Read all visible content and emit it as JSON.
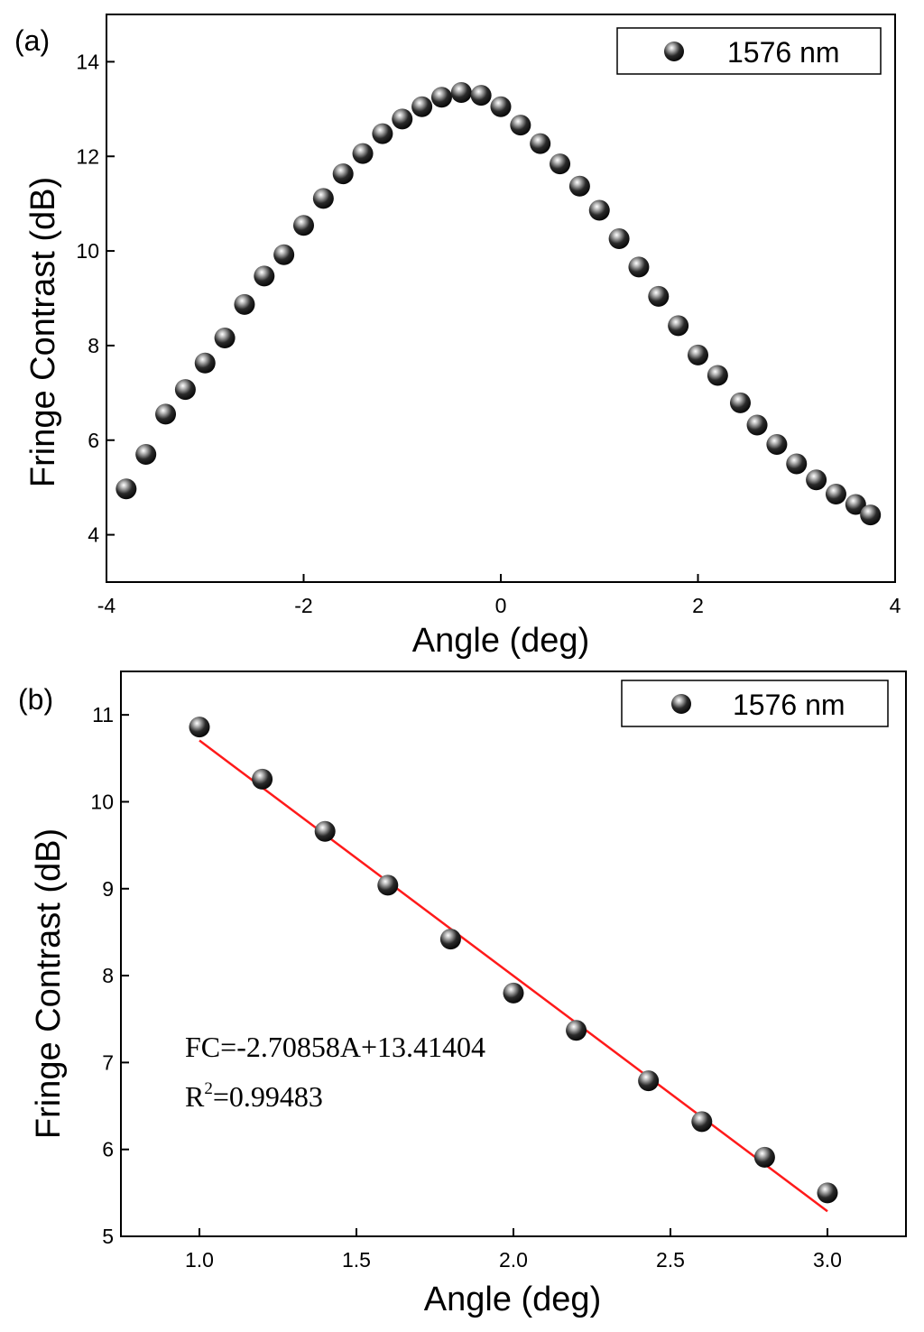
{
  "chart_data": [
    {
      "type": "scatter",
      "panel_label": "(a)",
      "xlabel": "Angle (deg)",
      "ylabel": "Fringe Contrast (dB)",
      "xlim": [
        -4,
        4
      ],
      "ylim": [
        3.0,
        15.0
      ],
      "xticks": [
        -4,
        -2,
        0,
        2,
        4
      ],
      "xtick_labels": [
        "-4",
        "-2",
        "0",
        "2",
        "4"
      ],
      "yticks": [
        4,
        6,
        8,
        10,
        12,
        14
      ],
      "ytick_labels": [
        "4",
        "6",
        "8",
        "10",
        "12",
        "14"
      ],
      "grid": false,
      "legend_position": "top-right",
      "series": [
        {
          "name": "1576 nm",
          "marker_color": "#000000",
          "x": [
            -3.8,
            -3.6,
            -3.4,
            -3.2,
            -3.0,
            -2.8,
            -2.6,
            -2.4,
            -2.2,
            -2.0,
            -1.8,
            -1.6,
            -1.4,
            -1.2,
            -1.0,
            -0.8,
            -0.6,
            -0.4,
            -0.2,
            0.0,
            0.2,
            0.4,
            0.6,
            0.8,
            1.0,
            1.2,
            1.4,
            1.6,
            1.8,
            2.0,
            2.2,
            2.43,
            2.6,
            2.8,
            3.0,
            3.2,
            3.4,
            3.6,
            3.75
          ],
          "y": [
            4.97,
            5.7,
            6.55,
            7.07,
            7.63,
            8.16,
            8.87,
            9.47,
            9.92,
            10.54,
            11.11,
            11.63,
            12.06,
            12.48,
            12.79,
            13.05,
            13.25,
            13.35,
            13.29,
            13.05,
            12.66,
            12.27,
            11.84,
            11.37,
            10.86,
            10.26,
            9.66,
            9.04,
            8.42,
            7.8,
            7.37,
            6.79,
            6.32,
            5.91,
            5.5,
            5.16,
            4.86,
            4.64,
            4.42
          ]
        }
      ]
    },
    {
      "type": "scatter",
      "panel_label": "(b)",
      "xlabel": "Angle (deg)",
      "ylabel": "Fringe Contrast (dB)",
      "xlim": [
        0.75,
        3.25
      ],
      "ylim": [
        5.0,
        11.5
      ],
      "xticks": [
        1.0,
        1.5,
        2.0,
        2.5,
        3.0
      ],
      "xtick_labels": [
        "1.0",
        "1.5",
        "2.0",
        "2.5",
        "3.0"
      ],
      "yticks": [
        5,
        6,
        7,
        8,
        9,
        10,
        11
      ],
      "ytick_labels": [
        "5",
        "6",
        "7",
        "8",
        "9",
        "10",
        "11"
      ],
      "grid": false,
      "legend_position": "top-right",
      "series": [
        {
          "name": "1576 nm",
          "marker_color": "#000000",
          "x": [
            1.0,
            1.2,
            1.4,
            1.6,
            1.8,
            2.0,
            2.2,
            2.43,
            2.6,
            2.8,
            3.0
          ],
          "y": [
            10.86,
            10.26,
            9.66,
            9.04,
            8.42,
            7.8,
            7.37,
            6.79,
            6.32,
            5.91,
            5.5
          ]
        }
      ],
      "fit": {
        "slope": -2.70858,
        "intercept": 13.41404,
        "x_range": [
          1.0,
          3.0
        ],
        "color": "#ff1a1a"
      },
      "annotations": {
        "equation": "FC=-2.70858A+13.41404",
        "r2_prefix": "R",
        "r2_exponent": "2",
        "r2_value": "=0.99483"
      }
    }
  ]
}
